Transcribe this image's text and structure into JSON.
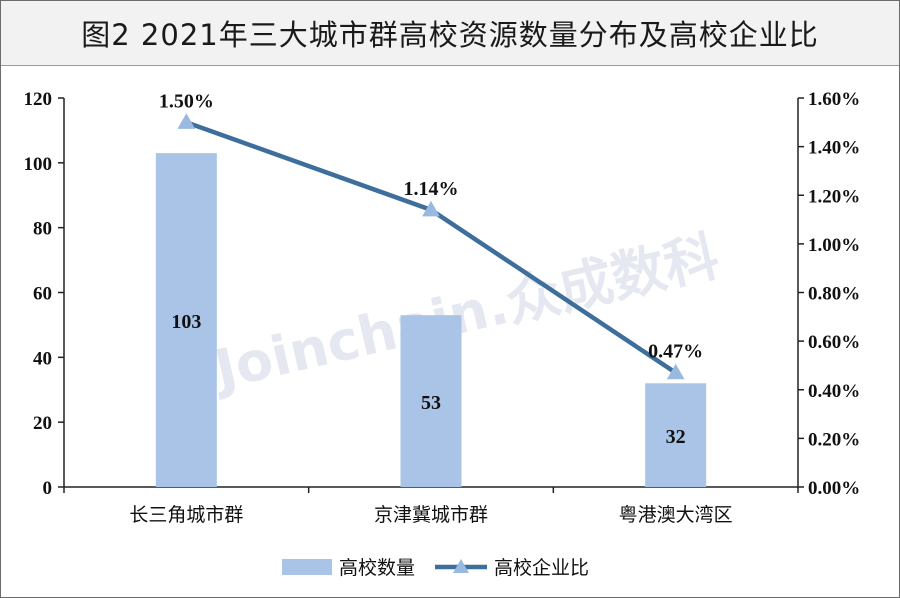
{
  "title": "图2  2021年三大城市群高校资源数量分布及高校企业比",
  "watermark": "Joinchain.众成数科",
  "chart_data": {
    "type": "bar",
    "categories": [
      "长三角城市群",
      "京津冀城市群",
      "粤港澳大湾区"
    ],
    "series": [
      {
        "name": "高校数量",
        "type": "bar",
        "axis": "left",
        "values": [
          103,
          53,
          32
        ],
        "labels": [
          "103",
          "53",
          "32"
        ],
        "color": "#a9c4e6"
      },
      {
        "name": "高校企业比",
        "type": "line",
        "axis": "right",
        "values": [
          1.5,
          1.14,
          0.47
        ],
        "labels": [
          "1.50%",
          "1.14%",
          "0.47%"
        ],
        "color": "#3d6e9c",
        "marker_color": "#9ab9e0"
      }
    ],
    "y_left": {
      "min": 0,
      "max": 120,
      "ticks": [
        "0",
        "20",
        "40",
        "60",
        "80",
        "100",
        "120"
      ]
    },
    "y_right": {
      "min": 0,
      "max": 1.6,
      "ticks": [
        "0.00%",
        "0.20%",
        "0.40%",
        "0.60%",
        "0.80%",
        "1.00%",
        "1.20%",
        "1.40%",
        "1.60%"
      ]
    },
    "legend_position": "bottom",
    "grid": false
  }
}
